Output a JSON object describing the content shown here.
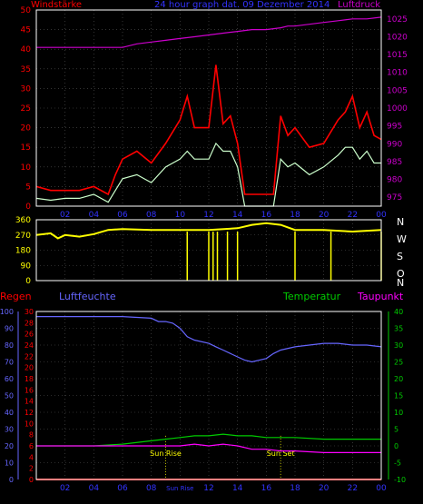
{
  "header": {
    "left_label": "Windstärke",
    "center_label": "24 hour graph dat. 09 Dezember 2014",
    "right_label": "Luftdruck"
  },
  "panel3_labels": {
    "regen": "Regen",
    "luftfeuchte": "Luftfeuchte",
    "temperatur": "Temperatur",
    "taupunkt": "Taupunkt"
  },
  "compass": [
    "N",
    "W",
    "S",
    "O",
    "N"
  ],
  "colors": {
    "wind_gust": "#ff0000",
    "wind_avg": "#ccffcc",
    "pressure": "#cc00cc",
    "direction": "#ffff00",
    "humidity": "#6666ff",
    "temperature": "#00cc00",
    "dewpoint": "#ff00ff",
    "rain": "#ff0000",
    "frame": "#ffffff",
    "grid": "#555555"
  },
  "chart_data": [
    {
      "type": "line",
      "name": "wind-pressure",
      "x_ticks": [
        "02",
        "04",
        "06",
        "08",
        "10",
        "12",
        "14",
        "16",
        "18",
        "20",
        "22",
        "00"
      ],
      "y_left_ticks": [
        0,
        5,
        10,
        15,
        20,
        25,
        30,
        35,
        40,
        45,
        50
      ],
      "y_right_ticks": [
        975,
        980,
        985,
        990,
        995,
        1000,
        1005,
        1010,
        1015,
        1020,
        1025
      ],
      "y_left_lim": [
        0,
        50
      ],
      "y_right_lim": [
        972.5,
        1027.5
      ],
      "pressure": {
        "x": [
          0,
          3,
          6,
          7,
          8,
          9,
          10,
          11,
          12,
          13,
          14,
          15,
          16,
          17,
          17.5,
          18,
          19,
          20,
          21,
          22,
          23,
          24
        ],
        "y": [
          1017,
          1017,
          1017,
          1018,
          1018.5,
          1019,
          1019.5,
          1020,
          1020.5,
          1021,
          1021.5,
          1022,
          1022,
          1022.5,
          1023,
          1023,
          1023.5,
          1024,
          1024.5,
          1025,
          1025,
          1025.5
        ]
      },
      "wind_gust": {
        "x": [
          0,
          1,
          2,
          3,
          4,
          5,
          5.5,
          6,
          7,
          8,
          9,
          10,
          10.5,
          11,
          12,
          12.5,
          13,
          13.5,
          14,
          14.5,
          15,
          16,
          16.5,
          17,
          17.5,
          18,
          19,
          20,
          21,
          21.5,
          22,
          22.5,
          23,
          23.5,
          24
        ],
        "y": [
          5,
          4,
          4,
          4,
          5,
          3,
          8,
          12,
          14,
          11,
          16,
          22,
          28,
          20,
          20,
          36,
          21,
          23,
          16,
          3,
          3,
          3,
          3,
          23,
          18,
          20,
          15,
          16,
          22,
          24,
          28,
          20,
          24,
          18,
          17
        ]
      },
      "wind_avg": {
        "x": [
          0,
          1,
          2,
          3,
          4,
          5,
          5.5,
          6,
          7,
          8,
          9,
          10,
          10.5,
          11,
          12,
          12.5,
          13,
          13.5,
          14,
          14.5,
          15,
          16,
          16.5,
          17,
          17.5,
          18,
          19,
          20,
          21,
          21.5,
          22,
          22.5,
          23,
          23.5,
          24
        ],
        "y": [
          2,
          1.5,
          2,
          2,
          3,
          1,
          4,
          7,
          8,
          6,
          10,
          12,
          14,
          12,
          12,
          16,
          14,
          14,
          10,
          0,
          0,
          0,
          0,
          12,
          10,
          11,
          8,
          10,
          13,
          15,
          15,
          12,
          14,
          11,
          11
        ]
      }
    },
    {
      "type": "scatter",
      "name": "wind-direction",
      "y_ticks": [
        0,
        90,
        180,
        270,
        360
      ],
      "y_lim": [
        0,
        360
      ],
      "base": {
        "x": [
          0,
          1,
          1.5,
          2,
          3,
          4,
          5,
          6,
          8,
          10,
          12,
          14,
          15,
          16,
          17,
          18,
          20,
          22,
          24
        ],
        "y": [
          270,
          280,
          250,
          270,
          260,
          275,
          300,
          305,
          300,
          300,
          300,
          310,
          330,
          340,
          330,
          300,
          300,
          290,
          300
        ]
      },
      "spikes": {
        "x": [
          10.5,
          12,
          12.3,
          12.6,
          13.3,
          14,
          18,
          20.5,
          24
        ],
        "y": [
          0,
          0,
          0,
          0,
          0,
          0,
          0,
          0,
          0
        ]
      }
    },
    {
      "type": "line",
      "name": "humidity-temperature",
      "x_ticks": [
        "02",
        "04",
        "06",
        "08",
        "Sun Rise",
        "12",
        "14",
        "16",
        "18",
        "20",
        "22",
        "00"
      ],
      "y_humidity_ticks": [
        0,
        10,
        20,
        30,
        40,
        50,
        60,
        70,
        80,
        90,
        100
      ],
      "y_rain_ticks": [
        0,
        2,
        4,
        6,
        8,
        10,
        12,
        14,
        16,
        18,
        20,
        22,
        24,
        26,
        28,
        30
      ],
      "y_temp_ticks": [
        -10,
        -5,
        0,
        5,
        10,
        15,
        20,
        25,
        30,
        35,
        40
      ],
      "y_humidity_lim": [
        0,
        100
      ],
      "y_temp_lim": [
        -10,
        40
      ],
      "annotations": [
        {
          "text": "Sun Rise",
          "x": 9.0
        },
        {
          "text": "Sun Set",
          "x": 17.0
        }
      ],
      "humidity": {
        "x": [
          0,
          2,
          4,
          6,
          8,
          8.5,
          9,
          9.5,
          10,
          10.5,
          11,
          12,
          12.5,
          13,
          14,
          14.5,
          15,
          16,
          16.5,
          17,
          18,
          19,
          20,
          21,
          22,
          23,
          24
        ],
        "y": [
          97,
          97,
          97,
          97,
          96,
          94,
          94,
          93,
          90,
          85,
          83,
          81,
          79,
          77,
          73,
          71,
          70,
          72,
          75,
          77,
          79,
          80,
          81,
          81,
          80,
          80,
          79
        ]
      },
      "temperature": {
        "x": [
          0,
          2,
          4,
          6,
          8,
          9,
          10,
          11,
          12,
          13,
          14,
          15,
          16,
          17,
          18,
          20,
          22,
          24
        ],
        "y": [
          0,
          0,
          0,
          0.5,
          1.5,
          2,
          2.5,
          3,
          3,
          3.5,
          3,
          3,
          2.5,
          2.5,
          2.5,
          2,
          2,
          2
        ]
      },
      "dewpoint": {
        "x": [
          0,
          2,
          4,
          6,
          8,
          9,
          10,
          11,
          12,
          13,
          14,
          15,
          16,
          17,
          18,
          20,
          22,
          24
        ],
        "y": [
          0,
          0,
          0,
          0,
          0,
          0,
          0,
          0.5,
          0,
          0.5,
          0,
          -1,
          -1,
          -1.5,
          -1.5,
          -2,
          -2,
          -2
        ]
      },
      "rain": {
        "x": [
          0,
          24
        ],
        "y": [
          0,
          0
        ]
      }
    }
  ]
}
